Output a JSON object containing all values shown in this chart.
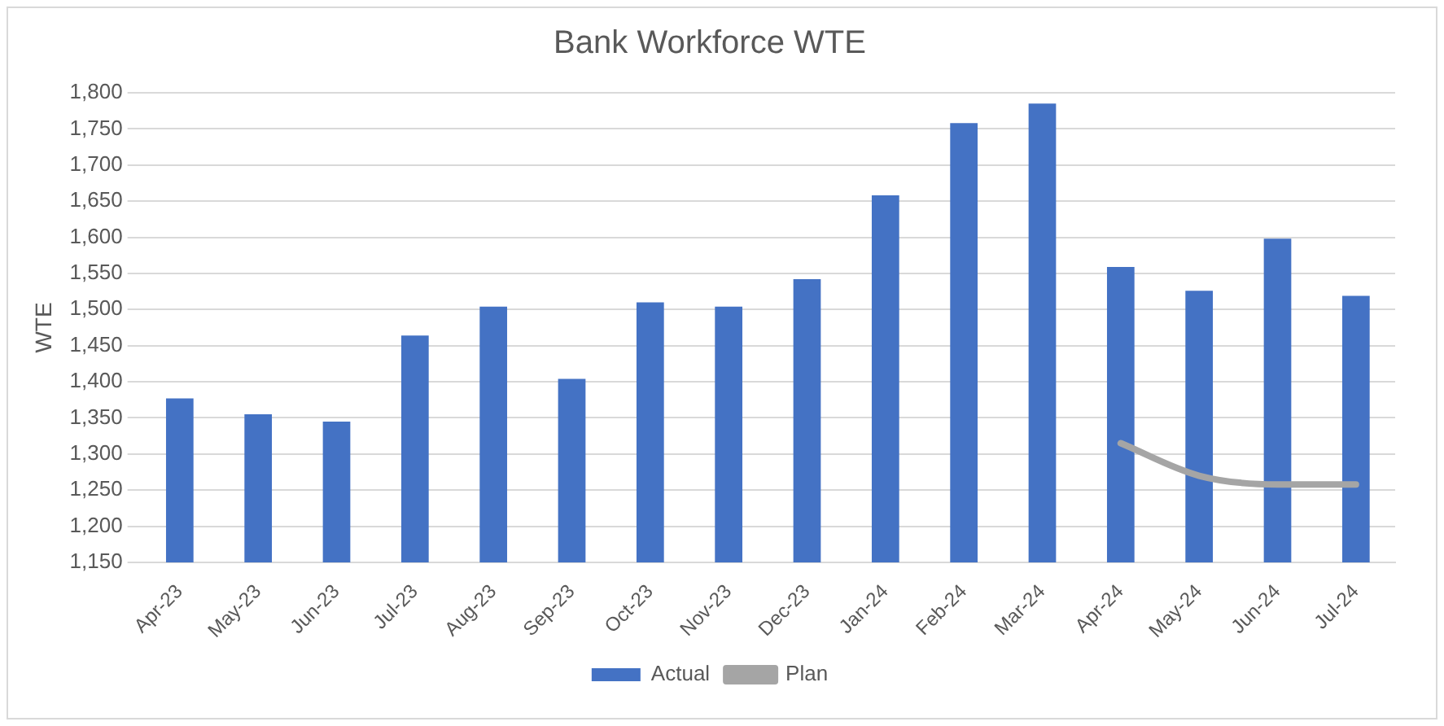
{
  "chart_data": {
    "type": "bar",
    "title": "Bank Workforce WTE",
    "ylabel": "WTE",
    "categories": [
      "Apr-23",
      "May-23",
      "Jun-23",
      "Jul-23",
      "Aug-23",
      "Sep-23",
      "Oct-23",
      "Nov-23",
      "Dec-23",
      "Jan-24",
      "Feb-24",
      "Mar-24",
      "Apr-24",
      "May-24",
      "Jun-24",
      "Jul-24"
    ],
    "series": [
      {
        "name": "Actual",
        "color": "#4472c4",
        "values": [
          1377,
          1355,
          1345,
          1464,
          1504,
          1404,
          1510,
          1504,
          1542,
          1658,
          1758,
          1785,
          1559,
          1526,
          1598,
          1519
        ]
      },
      {
        "name": "Plan",
        "type": "line",
        "color": "#a5a5a5",
        "values": [
          null,
          null,
          null,
          null,
          null,
          null,
          null,
          null,
          null,
          null,
          null,
          null,
          1315,
          1270,
          1258,
          1258
        ]
      }
    ],
    "ylim": [
      1150,
      1800
    ],
    "yticks": [
      {
        "value": 1150,
        "label": "1,150"
      },
      {
        "value": 1200,
        "label": "1,200"
      },
      {
        "value": 1250,
        "label": "1,250"
      },
      {
        "value": 1300,
        "label": "1,300"
      },
      {
        "value": 1350,
        "label": "1,350"
      },
      {
        "value": 1400,
        "label": "1,400"
      },
      {
        "value": 1450,
        "label": "1,450"
      },
      {
        "value": 1500,
        "label": "1,500"
      },
      {
        "value": 1550,
        "label": "1,550"
      },
      {
        "value": 1600,
        "label": "1,600"
      },
      {
        "value": 1650,
        "label": "1,650"
      },
      {
        "value": 1700,
        "label": "1,700"
      },
      {
        "value": 1750,
        "label": "1,750"
      },
      {
        "value": 1800,
        "label": "1,800"
      }
    ],
    "grid": "y",
    "legend": "bottom"
  }
}
